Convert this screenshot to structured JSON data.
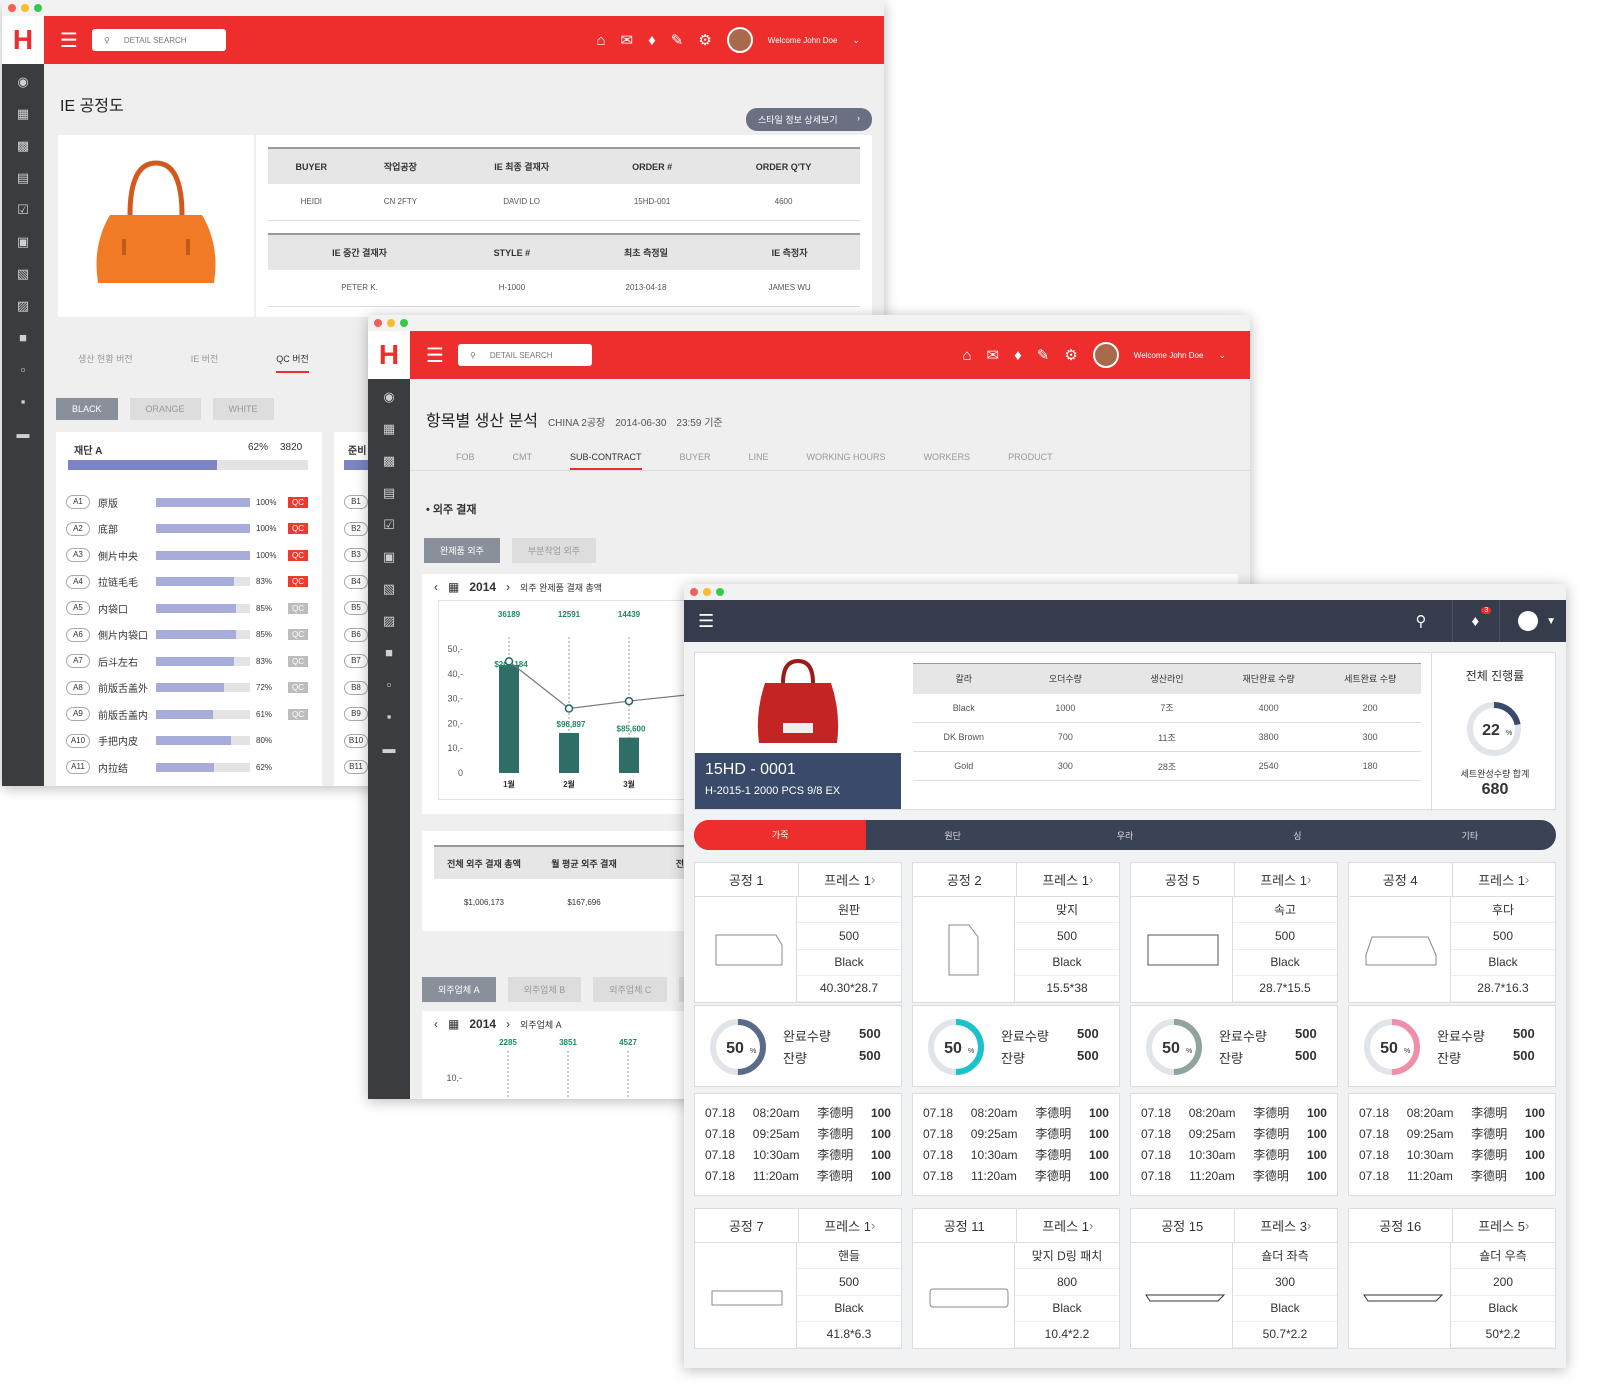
{
  "win1": {
    "logo": "H",
    "search_placeholder": "DETAIL SEARCH",
    "welcome": "Welcome John Doe",
    "title": "IE 공정도",
    "style_btn": "스타일 정보 상세보기",
    "table1_headers": [
      "BUYER",
      "작업공장",
      "IE 최종 결재자",
      "ORDER #",
      "ORDER Q'TY"
    ],
    "table1_values": [
      "HEIDI",
      "CN 2FTY",
      "DAVID LO",
      "15HD-001",
      "4600"
    ],
    "table2_headers": [
      "IE 중간 결재자",
      "STYLE #",
      "최초 측정일",
      "IE 측정자"
    ],
    "table2_values": [
      "PETER K.",
      "H-1000",
      "2013-04-18",
      "JAMES WU"
    ],
    "tabs": [
      "생산 현황 버전",
      "IE 버전",
      "QC 버전"
    ],
    "chips": [
      "BLACK",
      "ORANGE",
      "WHITE"
    ],
    "panel_a": {
      "title": "재단 A",
      "pct": "62%",
      "count": "3820",
      "progress": 62
    },
    "panel_b_title": "준비",
    "rows": [
      {
        "code": "A1",
        "name": "原版",
        "pct": "100%",
        "val": 100,
        "qc": "QC",
        "red": true
      },
      {
        "code": "A2",
        "name": "底部",
        "pct": "100%",
        "val": 100,
        "qc": "QC",
        "red": true
      },
      {
        "code": "A3",
        "name": "側片中央",
        "pct": "100%",
        "val": 100,
        "qc": "QC",
        "red": true
      },
      {
        "code": "A4",
        "name": "拉链毛毛",
        "pct": "83%",
        "val": 83,
        "qc": "QC",
        "red": true
      },
      {
        "code": "A5",
        "name": "内袋口",
        "pct": "85%",
        "val": 85,
        "qc": "QC",
        "red": false
      },
      {
        "code": "A6",
        "name": "側片内袋口",
        "pct": "85%",
        "val": 85,
        "qc": "QC",
        "red": false
      },
      {
        "code": "A7",
        "name": "后斗左右",
        "pct": "83%",
        "val": 83,
        "qc": "QC",
        "red": false
      },
      {
        "code": "A8",
        "name": "前版舌盖外",
        "pct": "72%",
        "val": 72,
        "qc": "QC",
        "red": false
      },
      {
        "code": "A9",
        "name": "前版舌盖内",
        "pct": "61%",
        "val": 61,
        "qc": "QC",
        "red": false
      },
      {
        "code": "A10",
        "name": "手把内皮",
        "pct": "80%",
        "val": 80,
        "qc": "",
        "red": false
      },
      {
        "code": "A11",
        "name": "内拉结",
        "pct": "62%",
        "val": 62,
        "qc": "",
        "red": false
      }
    ],
    "b_codes": [
      "B1",
      "B2",
      "B3",
      "B4",
      "B5",
      "B6",
      "B7",
      "B8",
      "B9",
      "B10",
      "B11"
    ]
  },
  "win2": {
    "logo": "H",
    "search_placeholder": "DETAIL SEARCH",
    "welcome": "Welcome John Doe",
    "title": "항목별 생산 분석",
    "factory": "CHINA 2공장",
    "date": "2014-06-30",
    "time": "23:59 기준",
    "tabs": [
      "FOB",
      "CMT",
      "SUB-CONTRACT",
      "BUYER",
      "LINE",
      "WORKING HOURS",
      "WORKERS",
      "PRODUCT"
    ],
    "section": "• 외주 결재",
    "chips": [
      "완제품 외주",
      "부분작업 외주"
    ],
    "year": "2014",
    "chart_title": "외주 완제품 결재 총액",
    "summary_headers": [
      "전체 외주 결재 총액",
      "월 평균 외주 결재",
      "전체"
    ],
    "summary_values": [
      "$1,006,173",
      "$167,696"
    ],
    "vendor_chips": [
      "외주업체 A",
      "외주업체 B",
      "외주업체 C",
      "외주업"
    ],
    "year2": "2014",
    "chart2_title": "외주업체 A",
    "chart2_top": [
      "2285",
      "3851",
      "4527"
    ],
    "chart2_tick": "10,-"
  },
  "chart_data": {
    "type": "bar",
    "title": "외주 완제품 결재 총액",
    "categories": [
      "1월",
      "2월",
      "3월"
    ],
    "top_labels": [
      "36189",
      "12591",
      "14439"
    ],
    "values": [
      261184,
      96897,
      85600
    ],
    "value_labels": [
      "$261,184",
      "$96,897",
      "$85,600"
    ],
    "line_values": [
      45,
      26,
      29
    ],
    "y_ticks": [
      "50,-",
      "40,-",
      "30,-",
      "20,-",
      "10,-",
      "0"
    ],
    "ylim": [
      0,
      50
    ],
    "bar_scale_ticks": [
      0,
      10,
      20,
      30,
      40,
      50
    ]
  },
  "win3": {
    "notif_count": "3",
    "style_code": "15HD - 0001",
    "style_sub": "H-2015-1   2000 PCS   9/8 EX",
    "table_headers": [
      "칼라",
      "오더수량",
      "생산라인",
      "재단완료 수량",
      "세트완료 수량"
    ],
    "table_rows": [
      [
        "Black",
        "1000",
        "7조",
        "4000",
        "200"
      ],
      [
        "DK Brown",
        "700",
        "11조",
        "3800",
        "300"
      ],
      [
        "Gold",
        "300",
        "28조",
        "2540",
        "180"
      ]
    ],
    "overall_title": "전체 진행률",
    "overall_pct": "22",
    "overall_value": 22,
    "overall_label": "세트완성수량 합계",
    "overall_total": "680",
    "ptabs": [
      "가죽",
      "원단",
      "우라",
      "싱",
      "기타"
    ],
    "processes": [
      {
        "name": "공정 1",
        "press": "프레스 1",
        "part": "원판",
        "qty": "500",
        "color": "Black",
        "size": "40.30*28.7",
        "shape": "hex"
      },
      {
        "name": "공정 2",
        "press": "프레스 1",
        "part": "맞지",
        "qty": "500",
        "color": "Black",
        "size": "15.5*38",
        "shape": "tall"
      },
      {
        "name": "공정 5",
        "press": "프레스 1",
        "part": "속고",
        "qty": "500",
        "color": "Black",
        "size": "28.7*15.5",
        "shape": "rect"
      },
      {
        "name": "공정 4",
        "press": "프레스 1",
        "part": "후다",
        "qty": "500",
        "color": "Black",
        "size": "28.7*16.3",
        "shape": "trap"
      }
    ],
    "progress": [
      {
        "pct": "50",
        "val": 50,
        "color": "#5c6a8a",
        "done_label": "완료수량",
        "done": "500",
        "left_label": "잔량",
        "left": "500"
      },
      {
        "pct": "50",
        "val": 50,
        "color": "#19c3c8",
        "done_label": "완료수량",
        "done": "500",
        "left_label": "잔량",
        "left": "500"
      },
      {
        "pct": "50",
        "val": 50,
        "color": "#8fa39f",
        "done_label": "완료수량",
        "done": "500",
        "left_label": "잔량",
        "left": "500"
      },
      {
        "pct": "50",
        "val": 50,
        "color": "#f08fa8",
        "done_label": "완료수량",
        "done": "500",
        "left_label": "잔량",
        "left": "500"
      }
    ],
    "logs": [
      [
        "07.18",
        "08:20am",
        "李德明",
        "100"
      ],
      [
        "07.18",
        "09:25am",
        "李德明",
        "100"
      ],
      [
        "07.18",
        "10:30am",
        "李德明",
        "100"
      ],
      [
        "07.18",
        "11:20am",
        "李德明",
        "100"
      ]
    ],
    "processes2": [
      {
        "name": "공정 7",
        "press": "프레스 1",
        "part": "핸들",
        "qty": "500",
        "color": "Black",
        "size": "41.8*6.3",
        "shape": "thin"
      },
      {
        "name": "공정 11",
        "press": "프레스 1",
        "part": "맞지 D링 패치",
        "qty": "800",
        "color": "Black",
        "size": "10.4*2.2",
        "shape": "round"
      },
      {
        "name": "공정 15",
        "press": "프레스 3",
        "part": "숄더 좌측",
        "qty": "300",
        "color": "Black",
        "size": "50.7*2.2",
        "shape": "strap"
      },
      {
        "name": "공정 16",
        "press": "프레스 5",
        "part": "숄더 우측",
        "qty": "200",
        "color": "Black",
        "size": "50*2.2",
        "shape": "strap"
      }
    ]
  }
}
